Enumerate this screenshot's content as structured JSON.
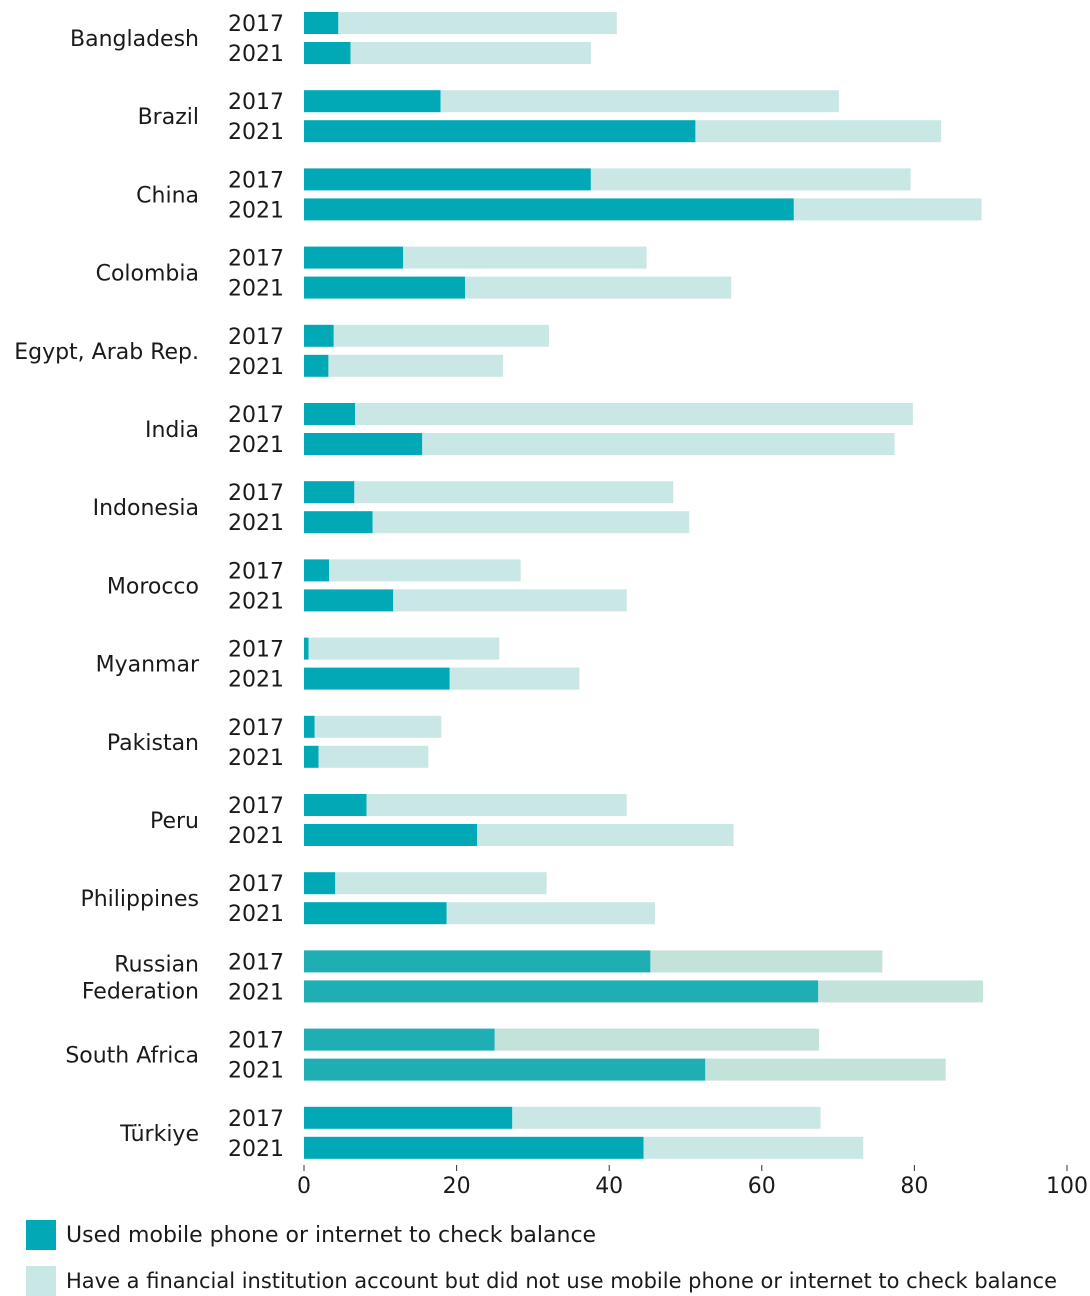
{
  "chart_data": {
    "type": "bar",
    "orientation": "horizontal",
    "stacked": true,
    "categories": [
      "Bangladesh",
      "Brazil",
      "China",
      "Colombia",
      "Egypt, Arab Rep.",
      "India",
      "Indonesia",
      "Morocco",
      "Myanmar",
      "Pakistan",
      "Peru",
      "Philippines",
      "Russian Federation",
      "South Africa",
      "Türkiye"
    ],
    "years": [
      "2017",
      "2021"
    ],
    "series": [
      {
        "name": "Used mobile phone or internet to check balance",
        "color": "#00a9b5",
        "values": [
          [
            4.5,
            6.1
          ],
          [
            17.9,
            51.3
          ],
          [
            37.6,
            64.2
          ],
          [
            13.0,
            21.1
          ],
          [
            3.9,
            3.2
          ],
          [
            6.7,
            15.5
          ],
          [
            6.6,
            9.0
          ],
          [
            3.3,
            11.7
          ],
          [
            0.6,
            19.1
          ],
          [
            1.4,
            1.9
          ],
          [
            8.2,
            22.7
          ],
          [
            4.1,
            18.7
          ],
          [
            45.4,
            67.4
          ],
          [
            25.0,
            52.6
          ],
          [
            27.3,
            44.5
          ]
        ]
      },
      {
        "name": "Have a financial institution account but did not use mobile phone or internet to check balance",
        "color": "#c9e7e5",
        "values": [
          [
            36.5,
            31.5
          ],
          [
            52.2,
            32.2
          ],
          [
            41.9,
            24.6
          ],
          [
            31.9,
            34.9
          ],
          [
            28.2,
            22.9
          ],
          [
            73.1,
            61.9
          ],
          [
            41.8,
            41.5
          ],
          [
            25.1,
            30.6
          ],
          [
            25.0,
            17.0
          ],
          [
            16.6,
            14.4
          ],
          [
            34.1,
            33.6
          ],
          [
            27.7,
            27.3
          ],
          [
            30.4,
            21.6
          ],
          [
            42.5,
            31.5
          ],
          [
            40.4,
            28.8
          ]
        ]
      }
    ],
    "xlim": [
      0,
      100
    ],
    "xticks": [
      "0",
      "20",
      "40",
      "60",
      "80",
      "100"
    ],
    "grid": false,
    "legend_position": "bottom-left"
  }
}
